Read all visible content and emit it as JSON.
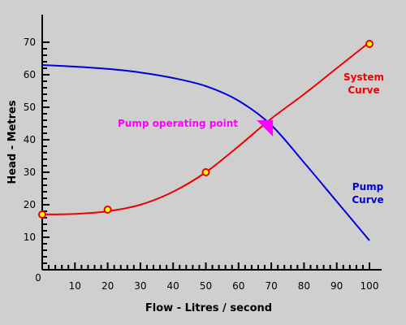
{
  "chart_data": {
    "type": "line",
    "xlabel": "Flow - Litres / second",
    "ylabel": "Head - Metres",
    "xlim": [
      0,
      100
    ],
    "ylim": [
      0,
      70
    ],
    "x_ticks": [
      10,
      20,
      30,
      40,
      50,
      60,
      70,
      80,
      90,
      100
    ],
    "y_ticks": [
      10,
      20,
      30,
      40,
      50,
      60,
      70
    ],
    "origin_label": "0",
    "series": [
      {
        "name": "Pump Curve",
        "label_lines": [
          "Pump",
          "Curve"
        ],
        "color": "#0000dd",
        "x": [
          0,
          10,
          20,
          30,
          40,
          50,
          60,
          70,
          80,
          90,
          100
        ],
        "y": [
          63,
          62.5,
          61.8,
          60.7,
          59,
          56.5,
          52,
          44.5,
          33,
          21,
          9
        ]
      },
      {
        "name": "System Curve",
        "label_lines": [
          "System",
          "Curve"
        ],
        "color": "#ee0000",
        "x": [
          0,
          10,
          20,
          30,
          40,
          50,
          60,
          70,
          80,
          90,
          100
        ],
        "y": [
          17,
          17.2,
          18,
          20,
          24,
          30,
          38,
          46.5,
          54,
          62,
          70
        ],
        "markers": [
          {
            "x": 0,
            "y": 17
          },
          {
            "x": 20,
            "y": 18.5
          },
          {
            "x": 50,
            "y": 30
          },
          {
            "x": 100,
            "y": 69.5
          }
        ]
      }
    ],
    "annotations": [
      {
        "text": "Pump operating point",
        "color": "#ff00ff",
        "points_to": {
          "x": 71,
          "y": 46.5
        }
      }
    ],
    "colors": {
      "background": "#cfcfcf",
      "pump": "#0000dd",
      "system": "#ee0000",
      "marker_fill": "#ffff00",
      "annotation": "#ff00ff"
    },
    "grid": false,
    "legend": "none"
  }
}
